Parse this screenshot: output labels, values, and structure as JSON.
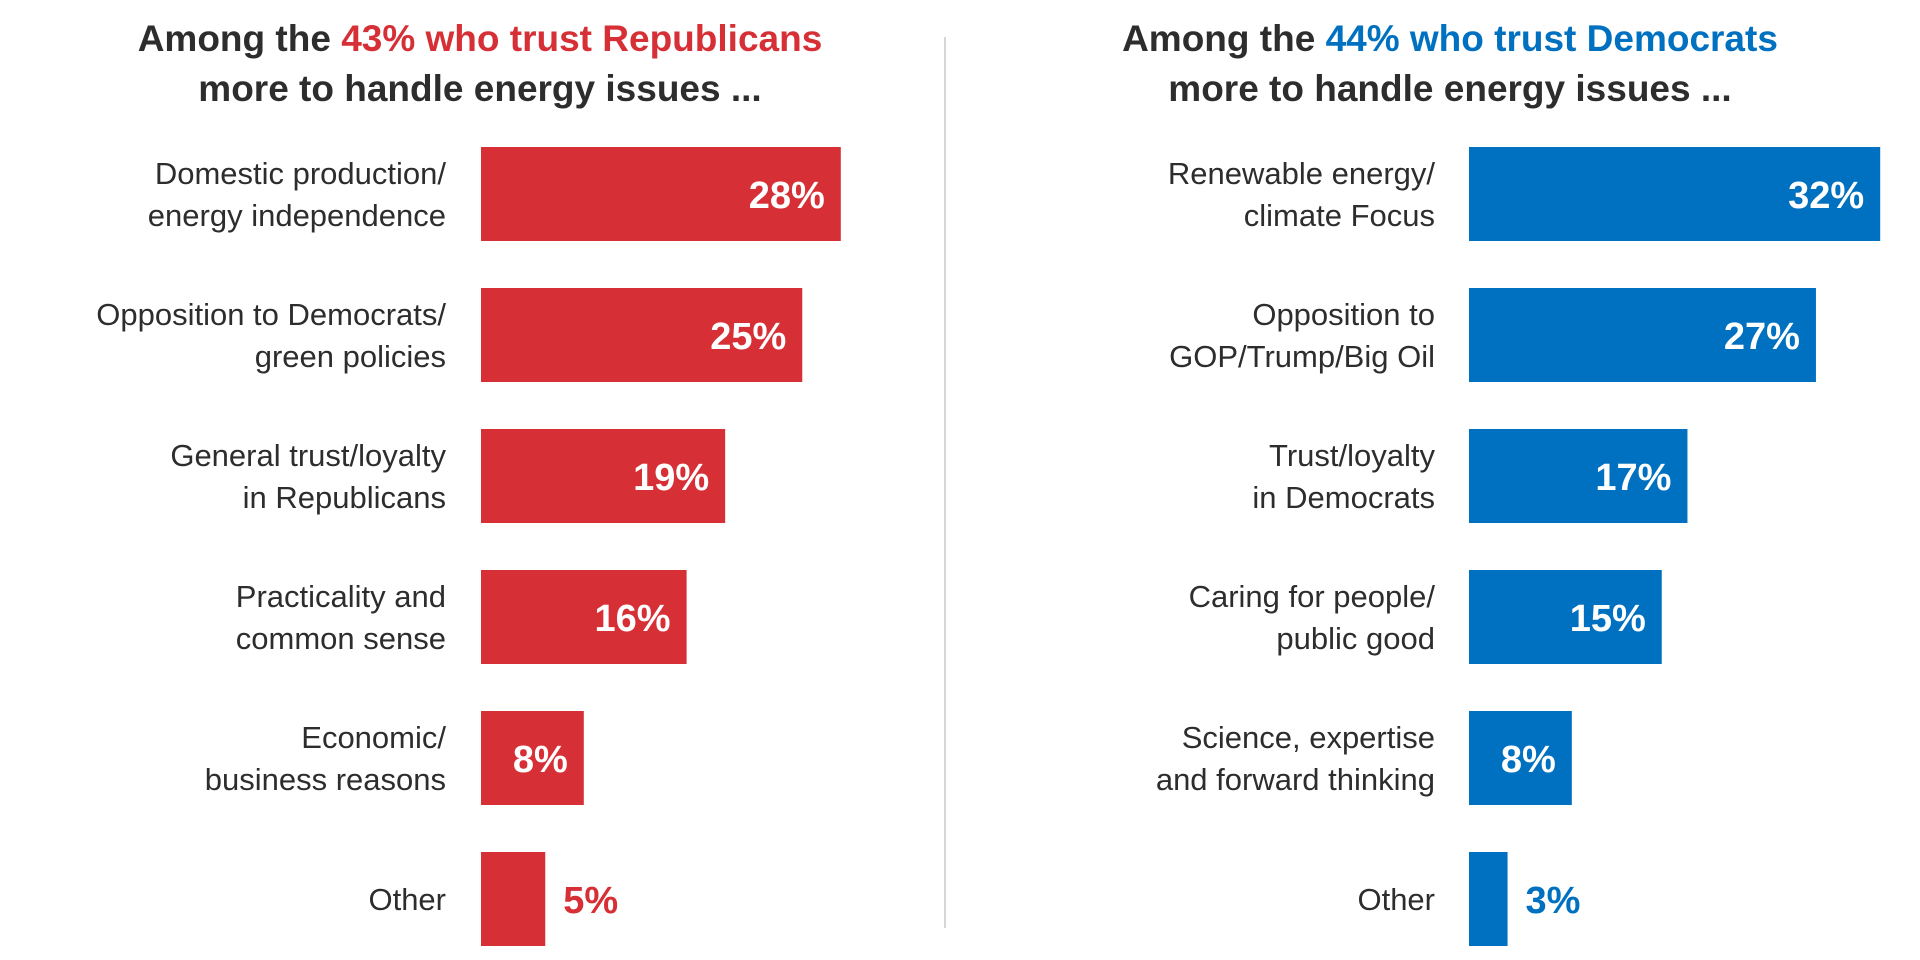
{
  "colors": {
    "republican": "#d62f35",
    "democrat": "#0070c0",
    "text": "#2d2d2d",
    "value_inside": "#ffffff"
  },
  "chart_data": [
    {
      "type": "bar",
      "orientation": "horizontal",
      "title": {
        "prefix": "Among the ",
        "highlight": "43% who trust Republicans",
        "line2": "more to handle energy issues ..."
      },
      "color_key": "republican",
      "categories": [
        [
          "Domestic production/",
          "energy independence"
        ],
        [
          "Opposition to Democrats/",
          "green policies"
        ],
        [
          "General trust/loyalty",
          "in Republicans"
        ],
        [
          "Practicality and",
          "common sense"
        ],
        [
          "Economic/",
          "business reasons"
        ],
        [
          "Other"
        ]
      ],
      "values": [
        28,
        25,
        19,
        16,
        8,
        5
      ],
      "value_labels": [
        "28%",
        "25%",
        "19%",
        "16%",
        "8%",
        "5%"
      ],
      "unit": "%",
      "xlim": [
        0,
        32
      ],
      "grid": false,
      "legend": "none"
    },
    {
      "type": "bar",
      "orientation": "horizontal",
      "title": {
        "prefix": "Among the ",
        "highlight": "44% who trust Democrats",
        "line2": "more to handle energy issues ..."
      },
      "color_key": "democrat",
      "categories": [
        [
          "Renewable energy/",
          "climate Focus"
        ],
        [
          "Opposition to",
          "GOP/Trump/Big Oil"
        ],
        [
          "Trust/loyalty",
          "in Democrats"
        ],
        [
          "Caring for people/",
          "public good"
        ],
        [
          "Science, expertise",
          "and forward thinking"
        ],
        [
          "Other"
        ]
      ],
      "values": [
        32,
        27,
        17,
        15,
        8,
        3
      ],
      "value_labels": [
        "32%",
        "27%",
        "17%",
        "15%",
        "8%",
        "3%"
      ],
      "unit": "%",
      "xlim": [
        0,
        32
      ],
      "grid": false,
      "legend": "none"
    }
  ]
}
